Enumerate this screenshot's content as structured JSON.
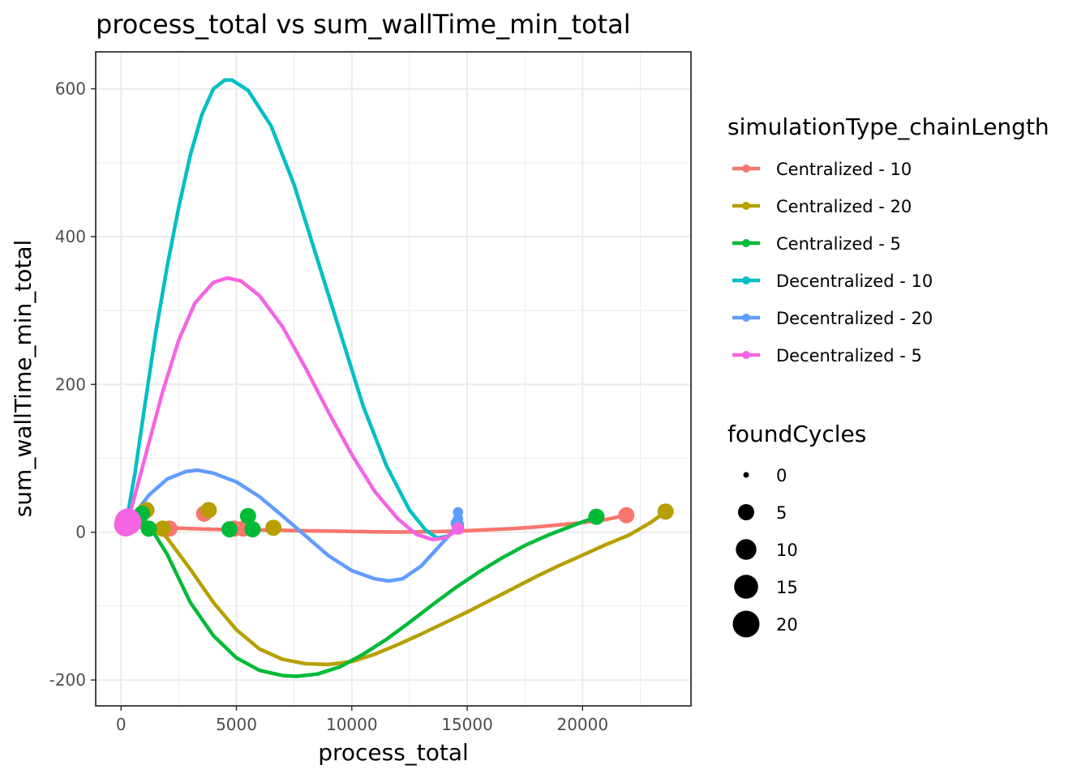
{
  "chart_data": {
    "type": "scatter",
    "title": "process_total  vs  sum_wallTime_min_total",
    "xlabel": "process_total",
    "ylabel": "sum_wallTime_min_total",
    "xlim": [
      -1100,
      24700
    ],
    "ylim": [
      -235,
      650
    ],
    "x_ticks": [
      0,
      5000,
      10000,
      15000,
      20000
    ],
    "x_tick_labels": [
      "0",
      "5000",
      "10000",
      "15000",
      "20000"
    ],
    "y_ticks": [
      -200,
      0,
      200,
      400,
      600
    ],
    "y_tick_labels": [
      "-200",
      "0",
      "200",
      "400",
      "600"
    ],
    "grid": true,
    "legend_position": "right",
    "color_legend_title": "simulationType_chainLength",
    "size_legend_title": "foundCycles",
    "size_legend": [
      {
        "label": "0",
        "value": 0
      },
      {
        "label": "5",
        "value": 5
      },
      {
        "label": "10",
        "value": 10
      },
      {
        "label": "15",
        "value": 15
      },
      {
        "label": "20",
        "value": 20
      }
    ],
    "series": [
      {
        "name": "Centralized - 10",
        "color": "#F8766D",
        "points": [
          [
            200,
            8,
            8
          ],
          [
            2100,
            5,
            5
          ],
          [
            3600,
            25,
            5
          ],
          [
            4900,
            5,
            5
          ],
          [
            5300,
            5,
            5
          ],
          [
            21900,
            23,
            5
          ]
        ],
        "curve": [
          [
            150,
            7
          ],
          [
            1000,
            7
          ],
          [
            2000,
            6
          ],
          [
            3000,
            5
          ],
          [
            4000,
            4
          ],
          [
            5000,
            3.5
          ],
          [
            6000,
            3
          ],
          [
            7000,
            2.5
          ],
          [
            8000,
            2
          ],
          [
            9000,
            1.5
          ],
          [
            10000,
            1
          ],
          [
            11000,
            0.5
          ],
          [
            12000,
            0.2
          ],
          [
            13000,
            0.5
          ],
          [
            14000,
            1
          ],
          [
            15000,
            2
          ],
          [
            16000,
            3.5
          ],
          [
            17000,
            5
          ],
          [
            18000,
            7
          ],
          [
            19000,
            10
          ],
          [
            20000,
            13
          ],
          [
            21000,
            17
          ],
          [
            21900,
            23
          ]
        ]
      },
      {
        "name": "Centralized - 20",
        "color": "#B79F00",
        "points": [
          [
            200,
            8,
            8
          ],
          [
            1100,
            30,
            5
          ],
          [
            1800,
            5,
            5
          ],
          [
            3800,
            30,
            5
          ],
          [
            6600,
            6,
            5
          ],
          [
            23600,
            28,
            5
          ]
        ],
        "curve": [
          [
            150,
            0
          ],
          [
            500,
            5
          ],
          [
            1000,
            15
          ],
          [
            1500,
            8
          ],
          [
            2000,
            -8
          ],
          [
            3000,
            -50
          ],
          [
            4000,
            -95
          ],
          [
            5000,
            -132
          ],
          [
            6000,
            -158
          ],
          [
            7000,
            -172
          ],
          [
            8000,
            -178
          ],
          [
            9000,
            -179
          ],
          [
            10000,
            -175
          ],
          [
            11000,
            -165
          ],
          [
            12000,
            -152
          ],
          [
            13000,
            -138
          ],
          [
            14000,
            -123
          ],
          [
            15000,
            -108
          ],
          [
            16000,
            -92
          ],
          [
            17000,
            -76
          ],
          [
            18000,
            -60
          ],
          [
            19000,
            -45
          ],
          [
            20000,
            -31
          ],
          [
            21000,
            -17
          ],
          [
            22000,
            -4
          ],
          [
            23000,
            14
          ],
          [
            23600,
            28
          ]
        ]
      },
      {
        "name": "Centralized - 5",
        "color": "#00BA38",
        "points": [
          [
            200,
            8,
            8
          ],
          [
            900,
            25,
            5
          ],
          [
            1200,
            5,
            5
          ],
          [
            4700,
            4,
            5
          ],
          [
            5500,
            22,
            5
          ],
          [
            5700,
            4,
            5
          ],
          [
            20600,
            21,
            5
          ]
        ],
        "curve": [
          [
            150,
            0
          ],
          [
            500,
            5
          ],
          [
            900,
            12
          ],
          [
            1300,
            5
          ],
          [
            2000,
            -30
          ],
          [
            3000,
            -95
          ],
          [
            4000,
            -140
          ],
          [
            5000,
            -170
          ],
          [
            6000,
            -187
          ],
          [
            7000,
            -194
          ],
          [
            7600,
            -195
          ],
          [
            8500,
            -192
          ],
          [
            9500,
            -182
          ],
          [
            10500,
            -165
          ],
          [
            11500,
            -145
          ],
          [
            12500,
            -122
          ],
          [
            13500,
            -98
          ],
          [
            14500,
            -75
          ],
          [
            15500,
            -54
          ],
          [
            16500,
            -35
          ],
          [
            17500,
            -18
          ],
          [
            18500,
            -4
          ],
          [
            19500,
            8
          ],
          [
            20600,
            21
          ]
        ]
      },
      {
        "name": "Decentralized - 10",
        "color": "#00BFC4",
        "points": [
          [
            200,
            12,
            8
          ],
          [
            14600,
            10,
            2
          ]
        ],
        "curve": [
          [
            150,
            0
          ],
          [
            600,
            80
          ],
          [
            1000,
            165
          ],
          [
            1500,
            270
          ],
          [
            2000,
            360
          ],
          [
            2500,
            440
          ],
          [
            3000,
            510
          ],
          [
            3500,
            565
          ],
          [
            4000,
            600
          ],
          [
            4500,
            612
          ],
          [
            4800,
            612
          ],
          [
            5500,
            598
          ],
          [
            6500,
            550
          ],
          [
            7500,
            470
          ],
          [
            8500,
            370
          ],
          [
            9500,
            270
          ],
          [
            10500,
            170
          ],
          [
            11500,
            90
          ],
          [
            12500,
            30
          ],
          [
            13200,
            3
          ],
          [
            13700,
            -8
          ],
          [
            14200,
            -5
          ],
          [
            14600,
            5
          ]
        ]
      },
      {
        "name": "Decentralized - 20",
        "color": "#619CFF",
        "points": [
          [
            200,
            8,
            8
          ],
          [
            14600,
            27,
            1
          ],
          [
            14600,
            18,
            1
          ],
          [
            14550,
            12,
            2
          ]
        ],
        "curve": [
          [
            150,
            0
          ],
          [
            600,
            25
          ],
          [
            1200,
            50
          ],
          [
            2000,
            72
          ],
          [
            2800,
            82
          ],
          [
            3300,
            84
          ],
          [
            4000,
            80
          ],
          [
            5000,
            68
          ],
          [
            6000,
            48
          ],
          [
            7000,
            22
          ],
          [
            8000,
            -5
          ],
          [
            9000,
            -32
          ],
          [
            10000,
            -52
          ],
          [
            11000,
            -63
          ],
          [
            11600,
            -66
          ],
          [
            12200,
            -63
          ],
          [
            13000,
            -46
          ],
          [
            13700,
            -22
          ],
          [
            14200,
            -5
          ],
          [
            14600,
            10
          ]
        ]
      },
      {
        "name": "Decentralized - 5",
        "color": "#F564E3",
        "points": [
          [
            200,
            10,
            14
          ],
          [
            300,
            14,
            20
          ],
          [
            14600,
            5,
            2
          ]
        ],
        "curve": [
          [
            150,
            0
          ],
          [
            600,
            50
          ],
          [
            1200,
            120
          ],
          [
            1800,
            190
          ],
          [
            2500,
            260
          ],
          [
            3200,
            310
          ],
          [
            4000,
            338
          ],
          [
            4600,
            344
          ],
          [
            5200,
            340
          ],
          [
            6000,
            320
          ],
          [
            7000,
            278
          ],
          [
            8000,
            222
          ],
          [
            9000,
            162
          ],
          [
            10000,
            105
          ],
          [
            11000,
            55
          ],
          [
            12000,
            18
          ],
          [
            12800,
            -3
          ],
          [
            13500,
            -10
          ],
          [
            14000,
            -8
          ],
          [
            14600,
            3
          ]
        ]
      }
    ]
  }
}
